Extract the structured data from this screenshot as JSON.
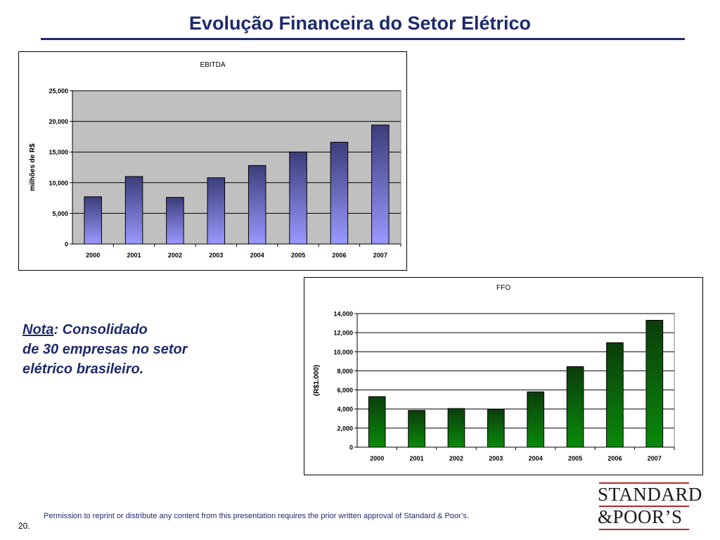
{
  "title": "Evolução Financeira do Setor Elétrico",
  "chart_data": [
    {
      "type": "bar",
      "title": "EBITDA",
      "ylabel": "milhões de R$",
      "xlabel": "",
      "categories": [
        "2000",
        "2001",
        "2002",
        "2003",
        "2004",
        "2005",
        "2006",
        "2007"
      ],
      "values": [
        7700,
        11000,
        7600,
        10800,
        12800,
        15000,
        16600,
        19400
      ],
      "ylim": [
        0,
        25000
      ],
      "yticks": [
        0,
        5000,
        10000,
        15000,
        20000,
        25000
      ],
      "ytick_labels": [
        "0",
        "5,000",
        "10,000",
        "15,000",
        "20,000",
        "25,000"
      ],
      "grid": true,
      "colors": {
        "bar_top": "#3b3d7a",
        "bar_bottom": "#9a99ff",
        "plot_bg": "#c0c0c0"
      }
    },
    {
      "type": "bar",
      "title": "FFO",
      "ylabel": "(R$1.000)",
      "xlabel": "",
      "categories": [
        "2000",
        "2001",
        "2002",
        "2003",
        "2004",
        "2005",
        "2006",
        "2007"
      ],
      "values": [
        5300,
        3850,
        4050,
        3950,
        5800,
        8450,
        10950,
        13300
      ],
      "ylim": [
        0,
        14000
      ],
      "yticks": [
        0,
        2000,
        4000,
        6000,
        8000,
        10000,
        12000,
        14000
      ],
      "ytick_labels": [
        "0",
        "2,000",
        "4,000",
        "6,000",
        "8,000",
        "10,000",
        "12,000",
        "14,000"
      ],
      "grid": true,
      "colors": {
        "bar_top": "#0b3d0b",
        "bar_bottom": "#0a8a0a",
        "plot_bg": "#ffffff"
      }
    }
  ],
  "note": {
    "label": "Nota",
    "text_line1": ": Consolidado",
    "text_line2": "de 30 empresas no setor",
    "text_line3": "elétrico brasileiro."
  },
  "footer": "Permission to reprint or distribute any content from this presentation requires the prior written approval of Standard & Poor’s.",
  "page_number": "20.",
  "logo": {
    "line1": "STANDARD",
    "line2": "&POOR’S"
  }
}
